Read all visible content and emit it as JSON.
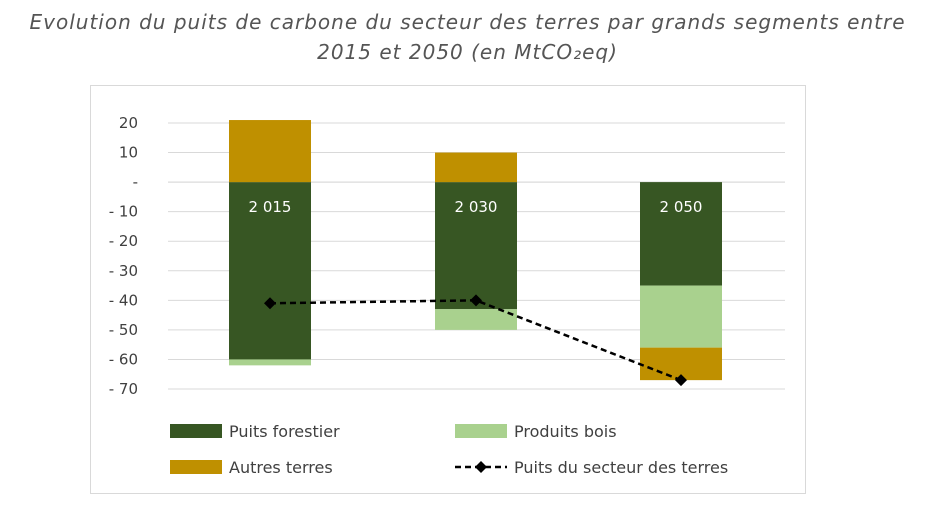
{
  "title_line1": "Evolution du puits de carbone du secteur des terres par grands segments entre",
  "title_line2": "2015 et 2050 (en MtCO₂eq)",
  "chart_data": {
    "type": "bar",
    "stacked": true,
    "categories": [
      "2 015",
      "2 030",
      "2 050"
    ],
    "series": [
      {
        "name": "Puits forestier",
        "color": "#375623",
        "values": [
          -60,
          -43,
          -35
        ]
      },
      {
        "name": "Produits bois",
        "color": "#a9d18e",
        "values": [
          -2,
          -7,
          -21
        ]
      },
      {
        "name": "Autres terres",
        "color": "#bf9000",
        "values": [
          21,
          10,
          -11
        ]
      }
    ],
    "line_series": {
      "name": "Puits du secteur des terres",
      "color": "#000000",
      "style": "dashed",
      "marker": "diamond",
      "values": [
        -41,
        -40,
        -67
      ]
    },
    "y_ticks": [
      "20",
      "10",
      "-",
      "- 10",
      "- 20",
      "- 30",
      "- 40",
      "- 50",
      "- 60",
      "- 70"
    ],
    "y_tick_values": [
      20,
      10,
      0,
      -10,
      -20,
      -30,
      -40,
      -50,
      -60,
      -70
    ],
    "ylim": [
      -70,
      20
    ],
    "grid": true,
    "legend_placement": "bottom"
  }
}
